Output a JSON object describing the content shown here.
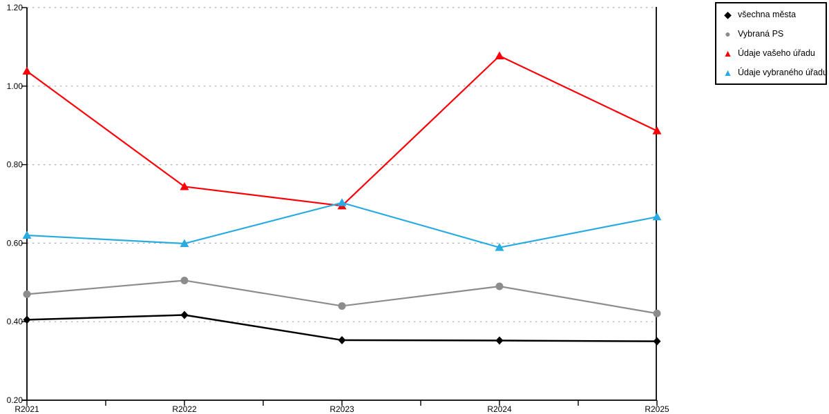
{
  "chart_data": {
    "type": "line",
    "title": "",
    "xlabel": "",
    "ylabel": "",
    "categories": [
      "R2021",
      "R2022",
      "R2023",
      "R2024",
      "R2025"
    ],
    "series": [
      {
        "name": "všechna města",
        "color": "#000000",
        "marker": "diamond",
        "line_width": 2.5,
        "values": [
          0.405,
          0.417,
          0.353,
          0.352,
          0.35
        ]
      },
      {
        "name": "Vybraná PS",
        "color": "#8c8c8c",
        "marker": "circle",
        "line_width": 2.2,
        "values": [
          0.47,
          0.505,
          0.44,
          0.49,
          0.421
        ]
      },
      {
        "name": "Údaje vašeho úřadu",
        "color": "#fb0007",
        "marker": "triangle",
        "line_width": 2.2,
        "values": [
          1.038,
          0.744,
          0.695,
          1.077,
          0.886
        ]
      },
      {
        "name": "Údaje vybraného úřadu",
        "color": "#29abe2",
        "marker": "triangle",
        "line_width": 2.2,
        "values": [
          0.62,
          0.599,
          0.703,
          0.589,
          0.667
        ]
      }
    ],
    "ylim": [
      0.2,
      1.2
    ],
    "ytick_labels": [
      "0.20",
      "0.40",
      "0.60",
      "0.80",
      "1.00",
      "1.20"
    ],
    "ytick_values": [
      0.2,
      0.4,
      0.6,
      0.8,
      1.0,
      1.2
    ],
    "grid": "horizontal-dotted",
    "grid_color": "#ababab",
    "axis_color": "#000000",
    "legend_position": "top-right-outside",
    "marker_glyphs": {
      "diamond": "◆",
      "circle": "●",
      "triangle": "▲"
    }
  }
}
